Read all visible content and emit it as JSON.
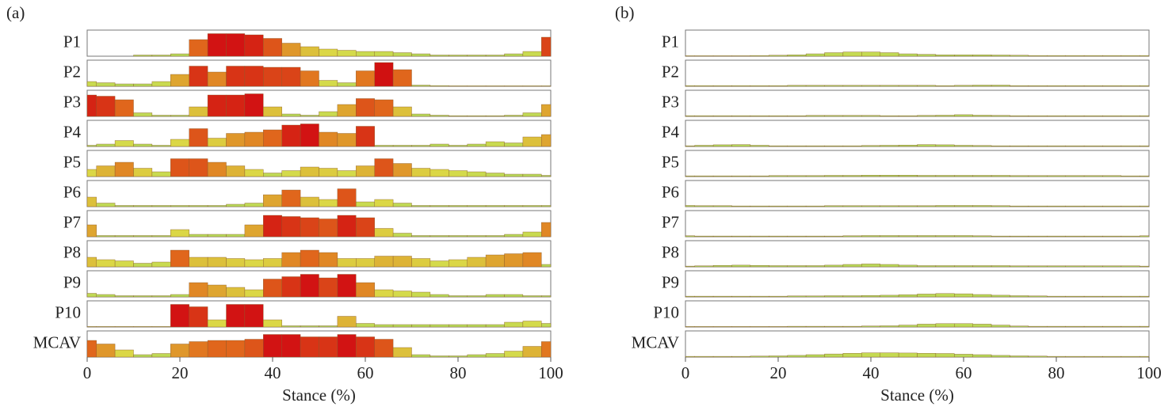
{
  "chart_data": [
    {
      "type": "bar",
      "label": "(a)",
      "x_label": "Stance (%)",
      "x": [
        0,
        4,
        8,
        12,
        16,
        20,
        24,
        28,
        32,
        36,
        40,
        44,
        48,
        52,
        56,
        60,
        64,
        68,
        72,
        76,
        80,
        84,
        88,
        92,
        96,
        100
      ],
      "xlim": [
        0,
        100
      ],
      "xticks": [
        0,
        20,
        40,
        60,
        80,
        100
      ],
      "series": [
        {
          "name": "P1",
          "values": [
            0,
            0,
            0,
            0.05,
            0.05,
            0.1,
            0.7,
            0.95,
            0.95,
            0.9,
            0.75,
            0.55,
            0.4,
            0.3,
            0.25,
            0.2,
            0.2,
            0.15,
            0.1,
            0.05,
            0.05,
            0.05,
            0.05,
            0.1,
            0.2,
            0.8
          ]
        },
        {
          "name": "P2",
          "values": [
            0.2,
            0.15,
            0.1,
            0.1,
            0.2,
            0.5,
            0.85,
            0.6,
            0.85,
            0.85,
            0.8,
            0.8,
            0.65,
            0.25,
            0.15,
            0.65,
            1.0,
            0.7,
            0.05,
            0.03,
            0.02,
            0.02,
            0.02,
            0.02,
            0.02,
            0.02
          ]
        },
        {
          "name": "P3",
          "values": [
            0.9,
            0.85,
            0.7,
            0.15,
            0.05,
            0.05,
            0.4,
            0.9,
            0.9,
            0.95,
            0.4,
            0.1,
            0.05,
            0.2,
            0.5,
            0.75,
            0.7,
            0.4,
            0.1,
            0.05,
            0.03,
            0.03,
            0.03,
            0.05,
            0.15,
            0.5
          ]
        },
        {
          "name": "P4",
          "values": [
            0.05,
            0.1,
            0.25,
            0.1,
            0.05,
            0.3,
            0.75,
            0.35,
            0.55,
            0.6,
            0.7,
            0.9,
            0.95,
            0.6,
            0.55,
            0.85,
            0.05,
            0.05,
            0.05,
            0.1,
            0.05,
            0.1,
            0.2,
            0.15,
            0.4,
            0.5
          ]
        },
        {
          "name": "P5",
          "values": [
            0.3,
            0.45,
            0.6,
            0.35,
            0.2,
            0.75,
            0.75,
            0.6,
            0.45,
            0.3,
            0.15,
            0.25,
            0.4,
            0.35,
            0.25,
            0.45,
            0.75,
            0.55,
            0.35,
            0.3,
            0.25,
            0.2,
            0.15,
            0.1,
            0.1,
            0.05
          ]
        },
        {
          "name": "P6",
          "values": [
            0.4,
            0.15,
            0.05,
            0.05,
            0.05,
            0.05,
            0.05,
            0.05,
            0.1,
            0.15,
            0.5,
            0.7,
            0.4,
            0.3,
            0.75,
            0.2,
            0.3,
            0.15,
            0.05,
            0.05,
            0.05,
            0.05,
            0.05,
            0.05,
            0.05,
            0.05
          ]
        },
        {
          "name": "P7",
          "values": [
            0.5,
            0.05,
            0.05,
            0.05,
            0.05,
            0.3,
            0.1,
            0.1,
            0.1,
            0.5,
            0.9,
            0.85,
            0.8,
            0.75,
            0.9,
            0.8,
            0.35,
            0.15,
            0.05,
            0.05,
            0.05,
            0.05,
            0.05,
            0.1,
            0.2,
            0.6
          ]
        },
        {
          "name": "P8",
          "values": [
            0.4,
            0.3,
            0.25,
            0.15,
            0.2,
            0.7,
            0.4,
            0.4,
            0.35,
            0.3,
            0.35,
            0.6,
            0.7,
            0.6,
            0.35,
            0.35,
            0.45,
            0.45,
            0.35,
            0.25,
            0.3,
            0.4,
            0.5,
            0.55,
            0.6,
            0.1
          ]
        },
        {
          "name": "P9",
          "values": [
            0.15,
            0.1,
            0.05,
            0.05,
            0.05,
            0.1,
            0.6,
            0.5,
            0.4,
            0.3,
            0.75,
            0.85,
            0.95,
            0.8,
            0.95,
            0.6,
            0.3,
            0.25,
            0.2,
            0.1,
            0.05,
            0.05,
            0.1,
            0.1,
            0.05,
            0.05
          ]
        },
        {
          "name": "P10",
          "values": [
            0.02,
            0.02,
            0.02,
            0.02,
            0.02,
            0.95,
            0.85,
            0.3,
            0.95,
            0.95,
            0.3,
            0.05,
            0.05,
            0.05,
            0.45,
            0.15,
            0.1,
            0.1,
            0.1,
            0.1,
            0.1,
            0.1,
            0.1,
            0.2,
            0.25,
            0.15
          ]
        },
        {
          "name": "MCAV",
          "values": [
            0.7,
            0.55,
            0.3,
            0.1,
            0.15,
            0.55,
            0.65,
            0.7,
            0.7,
            0.75,
            0.95,
            0.95,
            0.85,
            0.85,
            0.95,
            0.85,
            0.75,
            0.4,
            0.1,
            0.05,
            0.05,
            0.1,
            0.15,
            0.25,
            0.45,
            0.65
          ]
        }
      ]
    },
    {
      "type": "bar",
      "label": "(b)",
      "x_label": "Stance (%)",
      "x": [
        0,
        4,
        8,
        12,
        16,
        20,
        24,
        28,
        32,
        36,
        40,
        44,
        48,
        52,
        56,
        60,
        64,
        68,
        72,
        76,
        80,
        84,
        88,
        92,
        96,
        100
      ],
      "xlim": [
        0,
        100
      ],
      "xticks": [
        0,
        20,
        40,
        60,
        80,
        100
      ],
      "series": [
        {
          "name": "P1",
          "values": [
            0.02,
            0.02,
            0.02,
            0.02,
            0.03,
            0.04,
            0.06,
            0.1,
            0.15,
            0.18,
            0.18,
            0.15,
            0.1,
            0.08,
            0.06,
            0.06,
            0.06,
            0.05,
            0.04,
            0.03,
            0.03,
            0.03,
            0.03,
            0.03,
            0.03,
            0.03
          ]
        },
        {
          "name": "P2",
          "values": [
            0.03,
            0.03,
            0.03,
            0.03,
            0.03,
            0.03,
            0.04,
            0.04,
            0.04,
            0.04,
            0.04,
            0.04,
            0.04,
            0.04,
            0.03,
            0.04,
            0.05,
            0.05,
            0.03,
            0.03,
            0.03,
            0.03,
            0.03,
            0.03,
            0.03,
            0.03
          ]
        },
        {
          "name": "P3",
          "values": [
            0.03,
            0.03,
            0.03,
            0.03,
            0.03,
            0.03,
            0.03,
            0.04,
            0.04,
            0.04,
            0.04,
            0.03,
            0.03,
            0.04,
            0.05,
            0.07,
            0.05,
            0.04,
            0.03,
            0.03,
            0.03,
            0.03,
            0.03,
            0.03,
            0.03,
            0.03
          ]
        },
        {
          "name": "P4",
          "values": [
            0.03,
            0.05,
            0.07,
            0.08,
            0.05,
            0.03,
            0.03,
            0.03,
            0.03,
            0.03,
            0.04,
            0.05,
            0.06,
            0.08,
            0.07,
            0.05,
            0.04,
            0.03,
            0.03,
            0.03,
            0.03,
            0.03,
            0.03,
            0.03,
            0.03,
            0.03
          ]
        },
        {
          "name": "P5",
          "values": [
            0.03,
            0.03,
            0.03,
            0.03,
            0.03,
            0.04,
            0.04,
            0.04,
            0.05,
            0.05,
            0.06,
            0.06,
            0.06,
            0.05,
            0.05,
            0.05,
            0.05,
            0.05,
            0.04,
            0.04,
            0.04,
            0.04,
            0.04,
            0.04,
            0.03,
            0.03
          ]
        },
        {
          "name": "P6",
          "values": [
            0.05,
            0.04,
            0.04,
            0.03,
            0.03,
            0.03,
            0.03,
            0.03,
            0.04,
            0.04,
            0.04,
            0.04,
            0.04,
            0.04,
            0.05,
            0.05,
            0.05,
            0.04,
            0.03,
            0.03,
            0.03,
            0.03,
            0.03,
            0.03,
            0.03,
            0.03
          ]
        },
        {
          "name": "P7",
          "values": [
            0.04,
            0.03,
            0.03,
            0.03,
            0.03,
            0.03,
            0.03,
            0.03,
            0.03,
            0.04,
            0.05,
            0.05,
            0.05,
            0.05,
            0.05,
            0.05,
            0.04,
            0.03,
            0.03,
            0.03,
            0.03,
            0.03,
            0.03,
            0.03,
            0.03,
            0.04
          ]
        },
        {
          "name": "P8",
          "values": [
            0.03,
            0.04,
            0.06,
            0.07,
            0.06,
            0.05,
            0.05,
            0.05,
            0.07,
            0.1,
            0.12,
            0.1,
            0.07,
            0.05,
            0.05,
            0.05,
            0.05,
            0.05,
            0.04,
            0.04,
            0.04,
            0.04,
            0.04,
            0.04,
            0.04,
            0.03
          ]
        },
        {
          "name": "P9",
          "values": [
            0.03,
            0.03,
            0.03,
            0.03,
            0.03,
            0.03,
            0.04,
            0.04,
            0.05,
            0.05,
            0.06,
            0.07,
            0.09,
            0.12,
            0.14,
            0.13,
            0.1,
            0.07,
            0.05,
            0.04,
            0.03,
            0.03,
            0.03,
            0.03,
            0.03,
            0.03
          ]
        },
        {
          "name": "P10",
          "values": [
            0.02,
            0.02,
            0.02,
            0.02,
            0.02,
            0.02,
            0.03,
            0.03,
            0.03,
            0.03,
            0.04,
            0.05,
            0.08,
            0.12,
            0.14,
            0.14,
            0.12,
            0.08,
            0.04,
            0.03,
            0.03,
            0.03,
            0.03,
            0.03,
            0.03,
            0.03
          ]
        },
        {
          "name": "MCAV",
          "values": [
            0.03,
            0.03,
            0.03,
            0.03,
            0.04,
            0.05,
            0.07,
            0.1,
            0.13,
            0.16,
            0.18,
            0.18,
            0.17,
            0.16,
            0.15,
            0.12,
            0.1,
            0.07,
            0.05,
            0.04,
            0.03,
            0.03,
            0.03,
            0.03,
            0.03,
            0.03
          ]
        }
      ]
    }
  ]
}
